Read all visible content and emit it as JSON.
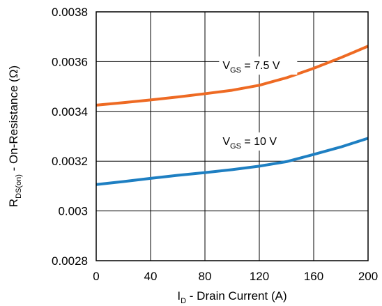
{
  "chart_data": {
    "type": "line",
    "xlabel": {
      "main": "I",
      "sub": "D",
      "rest": " - Drain Current (A)"
    },
    "ylabel": {
      "main": "R",
      "sub": "DS(on)",
      "rest": " - On-Resistance (Ω)"
    },
    "xlim": [
      0,
      200
    ],
    "ylim": [
      0.0028,
      0.0038
    ],
    "x_ticks": [
      0,
      40,
      80,
      120,
      160,
      200
    ],
    "x_tick_labels": [
      "0",
      "40",
      "80",
      "120",
      "160",
      "200"
    ],
    "y_ticks": [
      0.0028,
      0.003,
      0.0032,
      0.0034,
      0.0036,
      0.0038
    ],
    "y_tick_labels": [
      "0.0028",
      "0.003",
      "0.0032",
      "0.0034",
      "0.0036",
      "0.0038"
    ],
    "grid": true,
    "series": [
      {
        "label": {
          "main": "V",
          "sub": "GS",
          "rest": " = 7.5 V"
        },
        "label_at": {
          "x": 93,
          "y": 0.00357
        },
        "color": "#ee6a23",
        "x": [
          0,
          20,
          40,
          60,
          80,
          100,
          120,
          140,
          160,
          180,
          200
        ],
        "y": [
          0.003425,
          0.003435,
          0.003446,
          0.003458,
          0.003471,
          0.003485,
          0.003505,
          0.003535,
          0.003573,
          0.003616,
          0.003662
        ]
      },
      {
        "label": {
          "main": "V",
          "sub": "GS",
          "rest": " = 10 V"
        },
        "label_at": {
          "x": 93,
          "y": 0.003265
        },
        "color": "#1e7fc2",
        "x": [
          0,
          20,
          40,
          60,
          80,
          100,
          120,
          140,
          160,
          180,
          200
        ],
        "y": [
          0.003106,
          0.003118,
          0.003131,
          0.003143,
          0.003154,
          0.003166,
          0.00318,
          0.003198,
          0.003227,
          0.003257,
          0.003292
        ]
      }
    ]
  }
}
